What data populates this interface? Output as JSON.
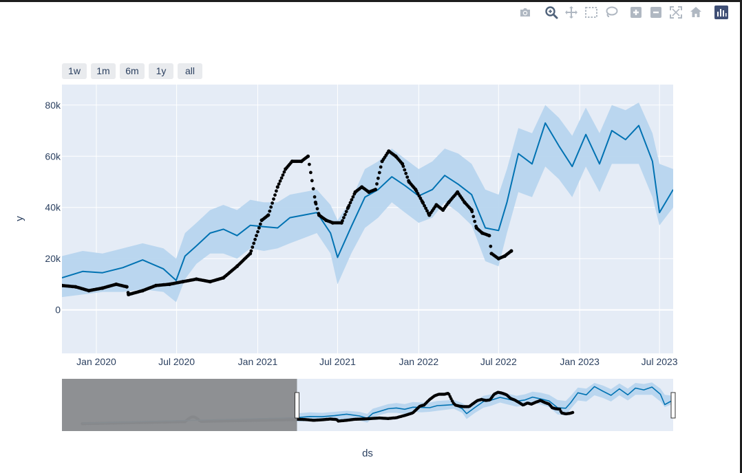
{
  "range_selector": [
    "1w",
    "1m",
    "6m",
    "1y",
    "all"
  ],
  "modebar": [
    {
      "icon": "camera-icon"
    },
    {
      "icon": "zoom-icon"
    },
    {
      "icon": "pan-icon"
    },
    {
      "icon": "box-select-icon"
    },
    {
      "icon": "lasso-select-icon"
    },
    {
      "icon": "zoom-in-icon"
    },
    {
      "icon": "zoom-out-icon"
    },
    {
      "icon": "autoscale-icon"
    },
    {
      "icon": "reset-axes-icon"
    },
    {
      "icon": "plotly-logo-icon"
    }
  ],
  "colors": {
    "plot_bg": "#e5ecf6",
    "grid": "#ffffff",
    "forecast": "#0072b2",
    "band": "#b7d5ee",
    "actual": "#000000",
    "rangeslider_mask": "#8a8c90",
    "text": "#2a3f5f"
  },
  "chart_data": {
    "type": "line",
    "xlabel": "ds",
    "ylabel": "y",
    "xlim": [
      "2019-10-15",
      "2023-08-01"
    ],
    "ylim": [
      -17000,
      88000
    ],
    "x_ticks": [
      {
        "date": "2020-01-01",
        "label": "Jan 2020"
      },
      {
        "date": "2020-07-01",
        "label": "Jul 2020"
      },
      {
        "date": "2021-01-01",
        "label": "Jan 2021"
      },
      {
        "date": "2021-07-01",
        "label": "Jul 2021"
      },
      {
        "date": "2022-01-01",
        "label": "Jan 2022"
      },
      {
        "date": "2022-07-01",
        "label": "Jul 2022"
      },
      {
        "date": "2023-01-01",
        "label": "Jan 2023"
      },
      {
        "date": "2023-07-01",
        "label": "Jul 2023"
      }
    ],
    "y_ticks": [
      {
        "value": 0,
        "label": "0"
      },
      {
        "value": 20000,
        "label": "20k"
      },
      {
        "value": 40000,
        "label": "40k"
      },
      {
        "value": 60000,
        "label": "60k"
      },
      {
        "value": 80000,
        "label": "80k"
      }
    ],
    "grid": true,
    "rangeslider": {
      "xlim": [
        "2017-06-01",
        "2023-08-01"
      ],
      "selected": [
        "2019-10-15",
        "2023-08-01"
      ]
    },
    "series": [
      {
        "kind": "uncertainty-band",
        "x": [
          "2019-10-15",
          "2019-12-01",
          "2020-01-15",
          "2020-03-01",
          "2020-04-15",
          "2020-06-01",
          "2020-06-30",
          "2020-07-20",
          "2020-08-15",
          "2020-09-15",
          "2020-10-15",
          "2020-11-15",
          "2020-12-15",
          "2021-01-15",
          "2021-02-15",
          "2021-03-15",
          "2021-04-15",
          "2021-05-15",
          "2021-06-15",
          "2021-07-01",
          "2021-08-01",
          "2021-09-01",
          "2021-10-01",
          "2021-11-01",
          "2021-12-01",
          "2022-01-01",
          "2022-02-01",
          "2022-03-01",
          "2022-04-01",
          "2022-05-01",
          "2022-06-01",
          "2022-07-01",
          "2022-07-20",
          "2022-08-15",
          "2022-09-15",
          "2022-10-15",
          "2022-11-15",
          "2022-12-15",
          "2023-01-15",
          "2023-02-15",
          "2023-03-15",
          "2023-04-15",
          "2023-05-15",
          "2023-06-15",
          "2023-07-01",
          "2023-08-01"
        ],
        "upper": [
          21000,
          23000,
          22000,
          24000,
          26000,
          24000,
          20000,
          30000,
          34000,
          39000,
          41000,
          39000,
          43000,
          42000,
          42000,
          45000,
          46000,
          47000,
          41000,
          35000,
          43000,
          55000,
          58000,
          63000,
          59000,
          55000,
          58000,
          63000,
          61000,
          57000,
          47000,
          45000,
          55000,
          71000,
          69000,
          80000,
          75000,
          68000,
          79000,
          69000,
          80000,
          78000,
          81000,
          69000,
          57000,
          55000
        ],
        "lower": [
          5000,
          6000,
          7000,
          7000,
          8000,
          7000,
          3000,
          12000,
          18000,
          22000,
          22000,
          20000,
          24000,
          23000,
          24000,
          26000,
          28000,
          30000,
          22000,
          10000,
          22000,
          32000,
          36000,
          42000,
          38000,
          34000,
          36000,
          42000,
          38000,
          33000,
          19000,
          17000,
          30000,
          46000,
          44000,
          56000,
          51000,
          44000,
          56000,
          46000,
          57000,
          57000,
          57000,
          44000,
          33000,
          40000
        ]
      },
      {
        "kind": "forecast",
        "x": [
          "2019-10-15",
          "2019-12-01",
          "2020-01-15",
          "2020-03-01",
          "2020-04-15",
          "2020-06-01",
          "2020-06-30",
          "2020-07-20",
          "2020-08-15",
          "2020-09-15",
          "2020-10-15",
          "2020-11-15",
          "2020-12-15",
          "2021-01-15",
          "2021-02-15",
          "2021-03-15",
          "2021-04-15",
          "2021-05-15",
          "2021-06-15",
          "2021-07-01",
          "2021-08-01",
          "2021-09-01",
          "2021-10-01",
          "2021-11-01",
          "2021-12-01",
          "2022-01-01",
          "2022-02-01",
          "2022-03-01",
          "2022-04-01",
          "2022-05-01",
          "2022-06-01",
          "2022-07-01",
          "2022-07-20",
          "2022-08-15",
          "2022-09-15",
          "2022-10-15",
          "2022-11-15",
          "2022-12-15",
          "2023-01-15",
          "2023-02-15",
          "2023-03-15",
          "2023-04-15",
          "2023-05-15",
          "2023-06-15",
          "2023-07-01",
          "2023-08-01"
        ],
        "y": [
          12500,
          15000,
          14500,
          16500,
          19500,
          16000,
          11500,
          21000,
          25000,
          30000,
          31500,
          29000,
          33000,
          32500,
          32000,
          36000,
          37000,
          38000,
          30000,
          20500,
          32500,
          44000,
          47000,
          52000,
          48500,
          44500,
          47000,
          52500,
          49000,
          45000,
          32000,
          31000,
          42000,
          61000,
          57000,
          73000,
          64000,
          56000,
          68500,
          57000,
          70000,
          66500,
          72000,
          58000,
          38000,
          47000
        ]
      },
      {
        "kind": "actual",
        "x": [
          "2019-10-15",
          "2019-11-15",
          "2019-12-15",
          "2020-01-15",
          "2020-02-15",
          "2020-03-10",
          "2020-03-14",
          "2020-04-15",
          "2020-05-15",
          "2020-06-15",
          "2020-07-15",
          "2020-08-15",
          "2020-09-15",
          "2020-10-15",
          "2020-11-15",
          "2020-12-15",
          "2021-01-10",
          "2021-01-25",
          "2021-02-15",
          "2021-03-05",
          "2021-03-20",
          "2021-04-10",
          "2021-04-25",
          "2021-05-12",
          "2021-05-20",
          "2021-06-05",
          "2021-06-20",
          "2021-07-10",
          "2021-07-25",
          "2021-08-10",
          "2021-08-25",
          "2021-09-10",
          "2021-09-25",
          "2021-10-10",
          "2021-10-25",
          "2021-11-10",
          "2021-11-25",
          "2021-12-10",
          "2021-12-25",
          "2022-01-10",
          "2022-01-25",
          "2022-02-10",
          "2022-02-25",
          "2022-03-10",
          "2022-03-30",
          "2022-04-15",
          "2022-05-01",
          "2022-05-12",
          "2022-05-25",
          "2022-06-10",
          "2022-06-15",
          "2022-07-01",
          "2022-07-15",
          "2022-07-30"
        ],
        "y": [
          9500,
          9000,
          7500,
          8500,
          10000,
          9000,
          6000,
          7500,
          9500,
          10000,
          11000,
          12000,
          11000,
          12500,
          17000,
          22000,
          35000,
          37000,
          48000,
          55000,
          58000,
          58000,
          60000,
          42000,
          37000,
          35000,
          34000,
          34000,
          40000,
          46000,
          48000,
          46000,
          47000,
          58000,
          62000,
          60000,
          57000,
          50000,
          47000,
          42000,
          37000,
          41000,
          39000,
          42000,
          46000,
          42000,
          39000,
          32000,
          30000,
          29000,
          22000,
          20000,
          21000,
          23000
        ]
      }
    ]
  }
}
